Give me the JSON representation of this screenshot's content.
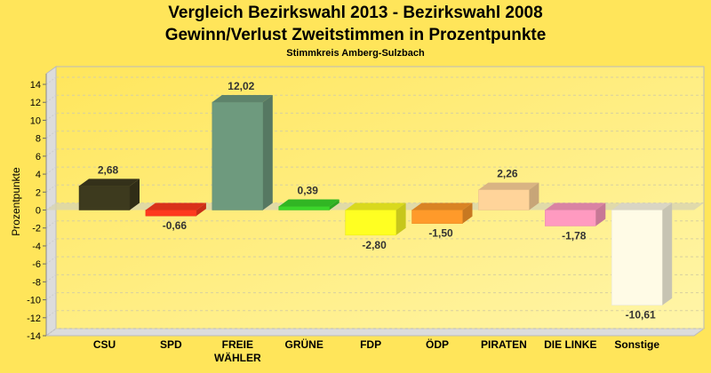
{
  "chart_data": {
    "type": "bar",
    "title": "Vergleich Bezirkswahl 2013 - Bezirkswahl 2008",
    "subtitle": "Gewinn/Verlust Zweitstimmen in Prozentpunkte",
    "subtitle2": "Stimmkreis Amberg-Sulzbach",
    "xlabel": "",
    "ylabel": "Prozentpunkte",
    "ylim": [
      -14,
      14
    ],
    "yticks": [
      14,
      12,
      10,
      8,
      6,
      4,
      2,
      0,
      -2,
      -4,
      -6,
      -8,
      -10,
      -12,
      -14
    ],
    "grid": true,
    "categories": [
      "CSU",
      "SPD",
      "FREIE\nWÄHLER",
      "GRÜNE",
      "FDP",
      "ÖDP",
      "PIRATEN",
      "DIE LINKE",
      "Sonstige"
    ],
    "values": [
      2.68,
      -0.66,
      12.02,
      0.39,
      -2.8,
      -1.5,
      2.26,
      -1.78,
      -10.61
    ],
    "labels": [
      "2,68",
      "-0,66",
      "12,02",
      "0,39",
      "-2,80",
      "-1,50",
      "2,26",
      "-1,78",
      "-10,61"
    ],
    "colors": [
      "#3d3a1e",
      "#ff3a1e",
      "#6e9a7e",
      "#3ad62a",
      "#ffff22",
      "#ff9a2a",
      "#ffd49a",
      "#ff9ac0",
      "#fffbe6"
    ]
  }
}
